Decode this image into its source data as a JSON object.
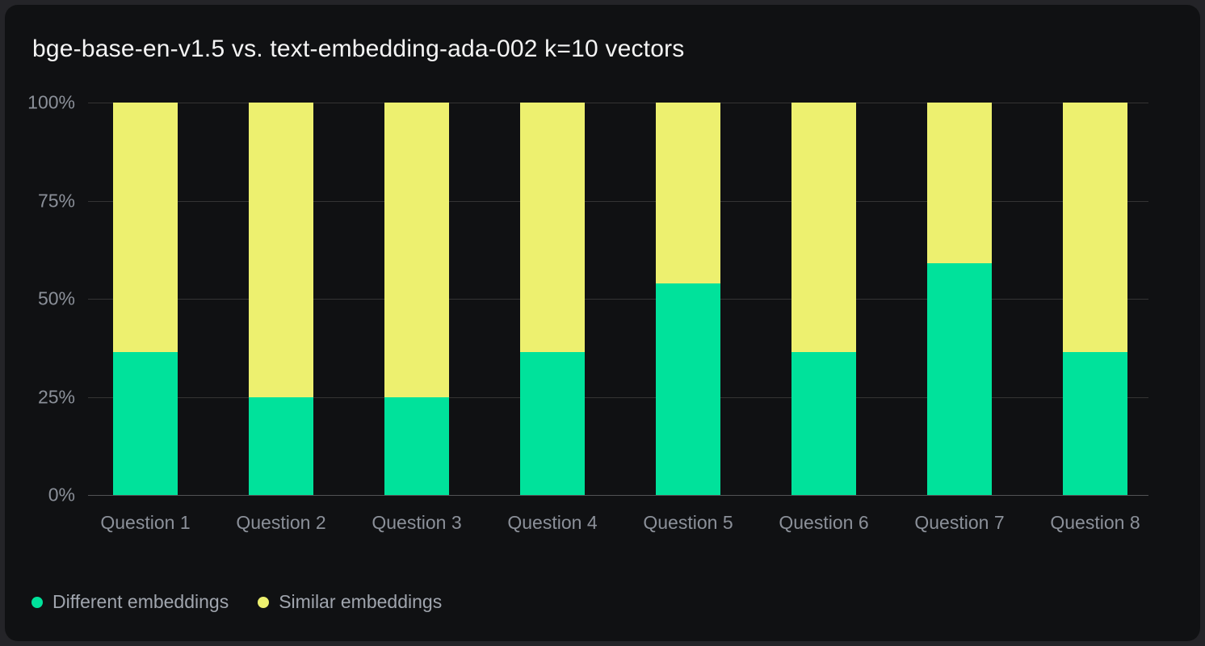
{
  "window": {
    "background": "#242428",
    "card_background": "#101113",
    "gridline_color": "#343434",
    "baseline_color": "#515254",
    "axis_label_color": "#8b9099",
    "legend_label_color": "#a0a5ae",
    "title_color": "#f4f4f4"
  },
  "header": {
    "title": "bge-base-en-v1.5 vs. text-embedding-ada-002 k=10 vectors"
  },
  "chart_data": {
    "type": "bar",
    "stacked": true,
    "unit": "percent",
    "title": "bge-base-en-v1.5 vs. text-embedding-ada-002 k=10 vectors",
    "categories": [
      "Question 1",
      "Question 2",
      "Question 3",
      "Question 4",
      "Question 5",
      "Question 6",
      "Question 7",
      "Question 8"
    ],
    "series": [
      {
        "name": "Different embeddings",
        "color": "#00E29B",
        "values": [
          36.5,
          25,
          25,
          36.5,
          54,
          36.5,
          59,
          36.5
        ]
      },
      {
        "name": "Similar embeddings",
        "color": "#EDF06F",
        "values": [
          63.5,
          75,
          75,
          63.5,
          46,
          63.5,
          41,
          63.5
        ]
      }
    ],
    "ylim": [
      0,
      100
    ],
    "ytick_labels": [
      "100%",
      "75%",
      "50%",
      "25%",
      "0%"
    ],
    "ytick_positions_pct": [
      0,
      25,
      50,
      75,
      100
    ],
    "grid": true,
    "legend_position": "bottom-left"
  },
  "legend": {
    "items": [
      {
        "label": "Different embeddings",
        "color": "#00E29B"
      },
      {
        "label": "Similar embeddings",
        "color": "#EDF06F"
      }
    ]
  }
}
